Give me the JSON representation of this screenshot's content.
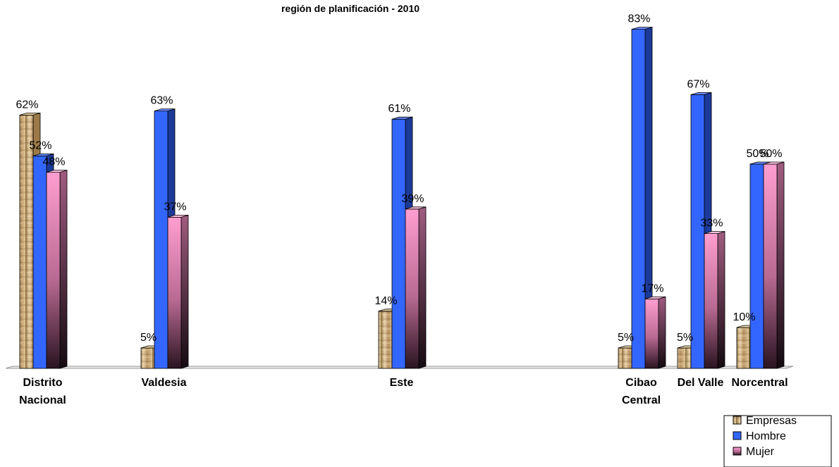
{
  "chart_data": {
    "type": "bar",
    "title": "región de planificación - 2010",
    "categories": [
      [
        "Distrito",
        "Nacional"
      ],
      [
        "Valdesia"
      ],
      [
        "Este"
      ],
      [
        "Cibao",
        "Central"
      ],
      [
        "Del Valle"
      ],
      [
        "Norcentral"
      ]
    ],
    "series": [
      {
        "name": "Empresas",
        "values": [
          62,
          5,
          14,
          5,
          5,
          10
        ],
        "color": "#c8a878"
      },
      {
        "name": "Hombre",
        "values": [
          52,
          63,
          61,
          83,
          67,
          50
        ],
        "color": "#3366ff"
      },
      {
        "name": "Mujer",
        "values": [
          48,
          37,
          39,
          17,
          33,
          50
        ],
        "color": "#ff99cc"
      }
    ],
    "value_suffix": "%",
    "ylim": [
      0,
      100
    ],
    "grid": false,
    "legend_position": "bottom-right",
    "style": "3d-cylinder-bars"
  }
}
